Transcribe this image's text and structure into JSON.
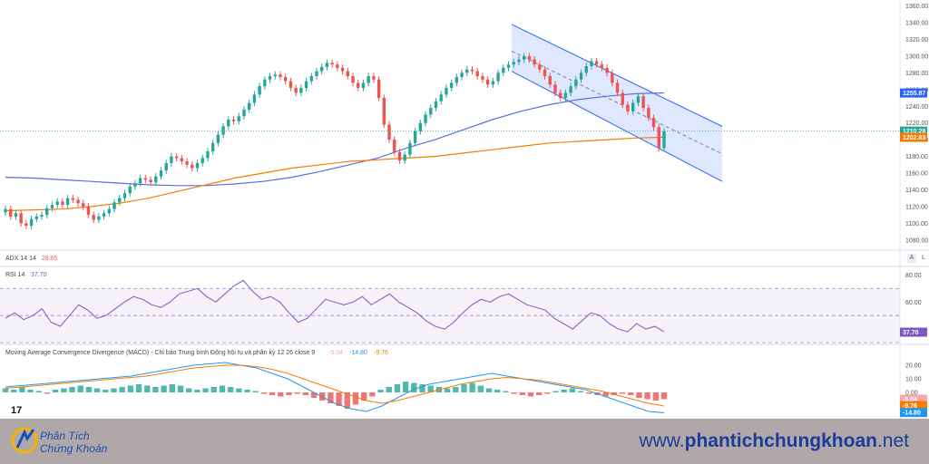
{
  "chart_data": {
    "type": "candlestick",
    "price_axis": {
      "ticks": [
        "1360.00",
        "1340.00",
        "1320.00",
        "1300.00",
        "1280.00",
        "1260.00",
        "1240.00",
        "1220.00",
        "1200.00",
        "1180.00",
        "1160.00",
        "1140.00",
        "1120.00",
        "1100.00",
        "1080.00"
      ],
      "min": 1070,
      "max": 1365
    },
    "badges": {
      "upper_ma": {
        "value": "1255.87",
        "color": "#2962ff"
      },
      "last_price": {
        "value": "1210.28",
        "color": "#26a69a"
      },
      "lower_ma": {
        "value": "1202.83",
        "color": "#f57c00"
      }
    },
    "candles": [
      [
        1113,
        1117
      ],
      [
        1117,
        1108
      ],
      [
        1108,
        1112
      ],
      [
        1112,
        1100
      ],
      [
        1100,
        1097
      ],
      [
        1097,
        1105
      ],
      [
        1105,
        1108
      ],
      [
        1108,
        1110
      ],
      [
        1110,
        1118
      ],
      [
        1118,
        1122
      ],
      [
        1122,
        1126
      ],
      [
        1126,
        1122
      ],
      [
        1122,
        1130
      ],
      [
        1130,
        1128
      ],
      [
        1128,
        1124
      ],
      [
        1124,
        1120
      ],
      [
        1120,
        1110
      ],
      [
        1110,
        1104
      ],
      [
        1104,
        1108
      ],
      [
        1108,
        1112
      ],
      [
        1112,
        1117
      ],
      [
        1117,
        1125
      ],
      [
        1125,
        1130
      ],
      [
        1130,
        1136
      ],
      [
        1136,
        1144
      ],
      [
        1144,
        1148
      ],
      [
        1148,
        1154
      ],
      [
        1154,
        1152
      ],
      [
        1152,
        1149
      ],
      [
        1149,
        1156
      ],
      [
        1156,
        1163
      ],
      [
        1163,
        1172
      ],
      [
        1172,
        1180
      ],
      [
        1180,
        1178
      ],
      [
        1178,
        1174
      ],
      [
        1174,
        1170
      ],
      [
        1170,
        1166
      ],
      [
        1166,
        1172
      ],
      [
        1172,
        1178
      ],
      [
        1178,
        1186
      ],
      [
        1186,
        1196
      ],
      [
        1196,
        1206
      ],
      [
        1206,
        1216
      ],
      [
        1216,
        1224
      ],
      [
        1224,
        1222
      ],
      [
        1222,
        1228
      ],
      [
        1228,
        1236
      ],
      [
        1236,
        1244
      ],
      [
        1244,
        1254
      ],
      [
        1254,
        1264
      ],
      [
        1264,
        1272
      ],
      [
        1272,
        1276
      ],
      [
        1276,
        1278
      ],
      [
        1278,
        1275
      ],
      [
        1275,
        1270
      ],
      [
        1270,
        1262
      ],
      [
        1262,
        1256
      ],
      [
        1256,
        1262
      ],
      [
        1262,
        1270
      ],
      [
        1270,
        1276
      ],
      [
        1276,
        1282
      ],
      [
        1282,
        1287
      ],
      [
        1287,
        1292
      ],
      [
        1292,
        1290
      ],
      [
        1290,
        1286
      ],
      [
        1286,
        1282
      ],
      [
        1282,
        1276
      ],
      [
        1276,
        1268
      ],
      [
        1268,
        1262
      ],
      [
        1262,
        1268
      ],
      [
        1268,
        1276
      ],
      [
        1276,
        1272
      ],
      [
        1272,
        1250
      ],
      [
        1250,
        1218
      ],
      [
        1218,
        1200
      ],
      [
        1200,
        1185
      ],
      [
        1185,
        1175
      ],
      [
        1175,
        1182
      ],
      [
        1182,
        1196
      ],
      [
        1196,
        1210
      ],
      [
        1210,
        1220
      ],
      [
        1220,
        1230
      ],
      [
        1230,
        1238
      ],
      [
        1238,
        1246
      ],
      [
        1246,
        1254
      ],
      [
        1254,
        1262
      ],
      [
        1262,
        1268
      ],
      [
        1268,
        1275
      ],
      [
        1275,
        1280
      ],
      [
        1280,
        1284
      ],
      [
        1284,
        1282
      ],
      [
        1282,
        1276
      ],
      [
        1276,
        1272
      ],
      [
        1272,
        1266
      ],
      [
        1266,
        1270
      ],
      [
        1270,
        1280
      ],
      [
        1280,
        1286
      ],
      [
        1286,
        1290
      ],
      [
        1290,
        1293
      ],
      [
        1293,
        1296
      ],
      [
        1296,
        1300
      ],
      [
        1300,
        1296
      ],
      [
        1296,
        1290
      ],
      [
        1290,
        1284
      ],
      [
        1284,
        1276
      ],
      [
        1276,
        1266
      ],
      [
        1266,
        1256
      ],
      [
        1256,
        1250
      ],
      [
        1250,
        1256
      ],
      [
        1256,
        1264
      ],
      [
        1264,
        1272
      ],
      [
        1272,
        1280
      ],
      [
        1280,
        1288
      ],
      [
        1288,
        1294
      ],
      [
        1294,
        1290
      ],
      [
        1290,
        1286
      ],
      [
        1286,
        1280
      ],
      [
        1280,
        1268
      ],
      [
        1268,
        1256
      ],
      [
        1256,
        1242
      ],
      [
        1242,
        1234
      ],
      [
        1234,
        1244
      ],
      [
        1244,
        1252
      ],
      [
        1252,
        1238
      ],
      [
        1238,
        1226
      ],
      [
        1226,
        1215
      ],
      [
        1215,
        1190
      ],
      [
        1190,
        1210
      ]
    ],
    "ma_lower": [
      1115,
      1116,
      1117,
      1120,
      1124,
      1130,
      1138,
      1146,
      1154,
      1160,
      1166,
      1170,
      1174,
      1176,
      1178,
      1180,
      1184,
      1188,
      1192,
      1196,
      1198,
      1200,
      1202,
      1203
    ],
    "ma_upper": [
      1155,
      1154,
      1152,
      1150,
      1148,
      1146,
      1145,
      1145,
      1147,
      1150,
      1155,
      1162,
      1170,
      1178,
      1190,
      1200,
      1212,
      1224,
      1234,
      1242,
      1248,
      1252,
      1255,
      1256
    ],
    "channel": {
      "top": [
        1338,
        1216
      ],
      "bottom": [
        1282,
        1150
      ],
      "mid": [
        1306,
        1183
      ]
    },
    "adx": {
      "label": "ADX 14 14",
      "value": "28.65",
      "value_color": "#ef5350"
    },
    "rsi": {
      "label": "RSI 14",
      "value": "37.70",
      "line_color": "#7e57c2",
      "ticks": [
        "80.00",
        "60.00"
      ],
      "values": [
        48,
        52,
        47,
        50,
        55,
        45,
        42,
        50,
        58,
        54,
        48,
        50,
        55,
        60,
        64,
        62,
        58,
        56,
        60,
        66,
        68,
        70,
        64,
        60,
        66,
        72,
        76,
        68,
        62,
        64,
        60,
        52,
        45,
        48,
        55,
        62,
        60,
        58,
        60,
        64,
        58,
        62,
        66,
        60,
        56,
        52,
        46,
        42,
        40,
        45,
        52,
        58,
        62,
        60,
        64,
        66,
        62,
        58,
        56,
        54,
        48,
        44,
        40,
        46,
        52,
        50,
        44,
        40,
        38,
        44,
        40,
        42,
        38
      ]
    },
    "macd": {
      "label": "Moving Average Convergence Divergence (MACD) - Chỉ báo Trung bình Động hội tụ và phân kỳ 12 26 close 9",
      "hist_value": "-5.04",
      "macd_value": "-14.80",
      "signal_value": "-9.76",
      "ticks": [
        "20.00",
        "10.00",
        "0.00"
      ],
      "histogram": [
        3,
        2,
        4,
        2,
        1,
        -1,
        2,
        3,
        4,
        5,
        4,
        3,
        2,
        3,
        4,
        5,
        6,
        5,
        4,
        5,
        6,
        5,
        3,
        2,
        3,
        4,
        5,
        4,
        3,
        2,
        1,
        -1,
        -2,
        -3,
        -2,
        -1,
        -2,
        -4,
        -6,
        -8,
        -10,
        -12,
        -9,
        -6,
        -3,
        2,
        4,
        6,
        8,
        7,
        6,
        5,
        4,
        3,
        4,
        6,
        7,
        5,
        3,
        2,
        1,
        -1,
        -2,
        -3,
        -2,
        -1,
        1,
        2,
        3,
        1,
        -1,
        -2,
        -3,
        -2,
        -1,
        -2,
        -4,
        -5,
        -6,
        -5
      ],
      "macd_line": [
        4,
        5,
        6,
        7,
        8,
        9,
        10,
        11,
        12,
        14,
        16,
        18,
        20,
        21,
        22,
        20,
        18,
        14,
        10,
        4,
        -2,
        -8,
        -12,
        -14,
        -10,
        -4,
        2,
        6,
        8,
        10,
        12,
        14,
        12,
        10,
        8,
        6,
        4,
        2,
        -2,
        -6,
        -10,
        -14,
        -15
      ],
      "signal_line": [
        3,
        4,
        5,
        6,
        7,
        8,
        9,
        10,
        11,
        12,
        14,
        16,
        18,
        19,
        20,
        20,
        19,
        17,
        14,
        10,
        6,
        2,
        -2,
        -6,
        -8,
        -6,
        -3,
        0,
        3,
        6,
        8,
        10,
        11,
        10,
        9,
        7,
        5,
        3,
        1,
        -2,
        -5,
        -8,
        -10
      ]
    },
    "colors": {
      "up": "#26a69a",
      "down": "#ef5350",
      "ma_upper": "#5b6ee1",
      "ma_lower": "#f57c00",
      "channel": "#2962ff"
    }
  },
  "controls": {
    "auto": "A",
    "log": "L"
  },
  "watermark": {
    "tv_logo": "17"
  },
  "footer": {
    "brand_line1": "Phân Tích",
    "brand_line2": "Chứng Khoán",
    "site_prefix": "www.",
    "site_bold": "phantichchungkhoan",
    "site_suffix": ".net"
  }
}
